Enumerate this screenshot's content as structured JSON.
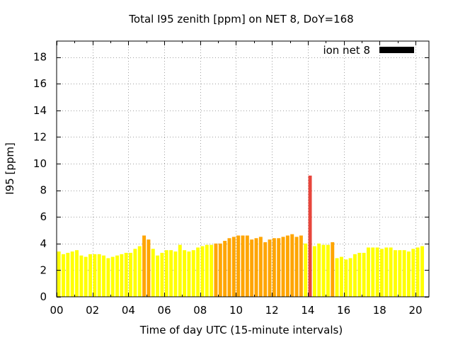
{
  "chart_data": {
    "type": "bar",
    "title": "Total I95 zenith [ppm] on NET 8, DoY=168",
    "xlabel": "Time of day UTC (15-minute intervals)",
    "ylabel": "I95 [ppm]",
    "xlim": [
      0,
      20.75
    ],
    "ylim": [
      0,
      19.2
    ],
    "x_ticks": [
      0,
      2,
      4,
      6,
      8,
      10,
      12,
      14,
      16,
      18,
      20
    ],
    "x_tick_labels": [
      "00",
      "02",
      "04",
      "06",
      "08",
      "10",
      "12",
      "14",
      "16",
      "18",
      "20"
    ],
    "y_ticks": [
      0,
      2,
      4,
      6,
      8,
      10,
      12,
      14,
      16,
      18
    ],
    "y_tick_labels": [
      "0",
      "2",
      "4",
      "6",
      "8",
      "10",
      "12",
      "14",
      "16",
      "18"
    ],
    "grid": true,
    "legend": {
      "label": "ion net 8",
      "color": "#000000",
      "placement": "top-right"
    },
    "colors": {
      "low": "#ffff00",
      "medium": "#ffa500",
      "high": "#e8463c"
    },
    "bars": [
      {
        "x": 0.0,
        "value": 3.4,
        "level": "low"
      },
      {
        "x": 0.25,
        "value": 3.2,
        "level": "low"
      },
      {
        "x": 0.5,
        "value": 3.3,
        "level": "low"
      },
      {
        "x": 0.75,
        "value": 3.4,
        "level": "low"
      },
      {
        "x": 1.0,
        "value": 3.5,
        "level": "low"
      },
      {
        "x": 1.25,
        "value": 3.1,
        "level": "low"
      },
      {
        "x": 1.5,
        "value": 3.0,
        "level": "low"
      },
      {
        "x": 1.75,
        "value": 3.2,
        "level": "low"
      },
      {
        "x": 2.0,
        "value": 3.2,
        "level": "low"
      },
      {
        "x": 2.25,
        "value": 3.2,
        "level": "low"
      },
      {
        "x": 2.5,
        "value": 3.1,
        "level": "low"
      },
      {
        "x": 2.75,
        "value": 2.9,
        "level": "low"
      },
      {
        "x": 3.0,
        "value": 3.0,
        "level": "low"
      },
      {
        "x": 3.25,
        "value": 3.1,
        "level": "low"
      },
      {
        "x": 3.5,
        "value": 3.2,
        "level": "low"
      },
      {
        "x": 3.75,
        "value": 3.3,
        "level": "low"
      },
      {
        "x": 4.0,
        "value": 3.3,
        "level": "low"
      },
      {
        "x": 4.25,
        "value": 3.6,
        "level": "low"
      },
      {
        "x": 4.5,
        "value": 3.8,
        "level": "low"
      },
      {
        "x": 4.75,
        "value": 4.6,
        "level": "medium"
      },
      {
        "x": 5.0,
        "value": 4.3,
        "level": "medium"
      },
      {
        "x": 5.25,
        "value": 3.6,
        "level": "low"
      },
      {
        "x": 5.5,
        "value": 3.1,
        "level": "low"
      },
      {
        "x": 5.75,
        "value": 3.3,
        "level": "low"
      },
      {
        "x": 6.0,
        "value": 3.5,
        "level": "low"
      },
      {
        "x": 6.25,
        "value": 3.5,
        "level": "low"
      },
      {
        "x": 6.5,
        "value": 3.4,
        "level": "low"
      },
      {
        "x": 6.75,
        "value": 3.9,
        "level": "low"
      },
      {
        "x": 7.0,
        "value": 3.5,
        "level": "low"
      },
      {
        "x": 7.25,
        "value": 3.4,
        "level": "low"
      },
      {
        "x": 7.5,
        "value": 3.5,
        "level": "low"
      },
      {
        "x": 7.75,
        "value": 3.7,
        "level": "low"
      },
      {
        "x": 8.0,
        "value": 3.8,
        "level": "low"
      },
      {
        "x": 8.25,
        "value": 3.9,
        "level": "low"
      },
      {
        "x": 8.5,
        "value": 3.9,
        "level": "low"
      },
      {
        "x": 8.75,
        "value": 4.0,
        "level": "medium"
      },
      {
        "x": 9.0,
        "value": 4.0,
        "level": "medium"
      },
      {
        "x": 9.25,
        "value": 4.2,
        "level": "medium"
      },
      {
        "x": 9.5,
        "value": 4.4,
        "level": "medium"
      },
      {
        "x": 9.75,
        "value": 4.5,
        "level": "medium"
      },
      {
        "x": 10.0,
        "value": 4.6,
        "level": "medium"
      },
      {
        "x": 10.25,
        "value": 4.6,
        "level": "medium"
      },
      {
        "x": 10.5,
        "value": 4.6,
        "level": "medium"
      },
      {
        "x": 10.75,
        "value": 4.3,
        "level": "medium"
      },
      {
        "x": 11.0,
        "value": 4.4,
        "level": "medium"
      },
      {
        "x": 11.25,
        "value": 4.5,
        "level": "medium"
      },
      {
        "x": 11.5,
        "value": 4.1,
        "level": "medium"
      },
      {
        "x": 11.75,
        "value": 4.3,
        "level": "medium"
      },
      {
        "x": 12.0,
        "value": 4.4,
        "level": "medium"
      },
      {
        "x": 12.25,
        "value": 4.4,
        "level": "medium"
      },
      {
        "x": 12.5,
        "value": 4.5,
        "level": "medium"
      },
      {
        "x": 12.75,
        "value": 4.6,
        "level": "medium"
      },
      {
        "x": 13.0,
        "value": 4.7,
        "level": "medium"
      },
      {
        "x": 13.25,
        "value": 4.5,
        "level": "medium"
      },
      {
        "x": 13.5,
        "value": 4.6,
        "level": "medium"
      },
      {
        "x": 13.75,
        "value": 4.0,
        "level": "low"
      },
      {
        "x": 14.0,
        "value": 9.1,
        "level": "high"
      },
      {
        "x": 14.25,
        "value": 3.8,
        "level": "low"
      },
      {
        "x": 14.5,
        "value": 4.0,
        "level": "low"
      },
      {
        "x": 14.75,
        "value": 3.9,
        "level": "low"
      },
      {
        "x": 15.0,
        "value": 3.9,
        "level": "low"
      },
      {
        "x": 15.25,
        "value": 4.1,
        "level": "medium"
      },
      {
        "x": 15.5,
        "value": 2.9,
        "level": "low"
      },
      {
        "x": 15.75,
        "value": 3.0,
        "level": "low"
      },
      {
        "x": 16.0,
        "value": 2.8,
        "level": "low"
      },
      {
        "x": 16.25,
        "value": 2.9,
        "level": "low"
      },
      {
        "x": 16.5,
        "value": 3.2,
        "level": "low"
      },
      {
        "x": 16.75,
        "value": 3.3,
        "level": "low"
      },
      {
        "x": 17.0,
        "value": 3.3,
        "level": "low"
      },
      {
        "x": 17.25,
        "value": 3.7,
        "level": "low"
      },
      {
        "x": 17.5,
        "value": 3.7,
        "level": "low"
      },
      {
        "x": 17.75,
        "value": 3.7,
        "level": "low"
      },
      {
        "x": 18.0,
        "value": 3.6,
        "level": "low"
      },
      {
        "x": 18.25,
        "value": 3.7,
        "level": "low"
      },
      {
        "x": 18.5,
        "value": 3.7,
        "level": "low"
      },
      {
        "x": 18.75,
        "value": 3.5,
        "level": "low"
      },
      {
        "x": 19.0,
        "value": 3.5,
        "level": "low"
      },
      {
        "x": 19.25,
        "value": 3.5,
        "level": "low"
      },
      {
        "x": 19.5,
        "value": 3.4,
        "level": "low"
      },
      {
        "x": 19.75,
        "value": 3.6,
        "level": "low"
      },
      {
        "x": 20.0,
        "value": 3.7,
        "level": "low"
      },
      {
        "x": 20.25,
        "value": 3.8,
        "level": "low"
      }
    ]
  }
}
